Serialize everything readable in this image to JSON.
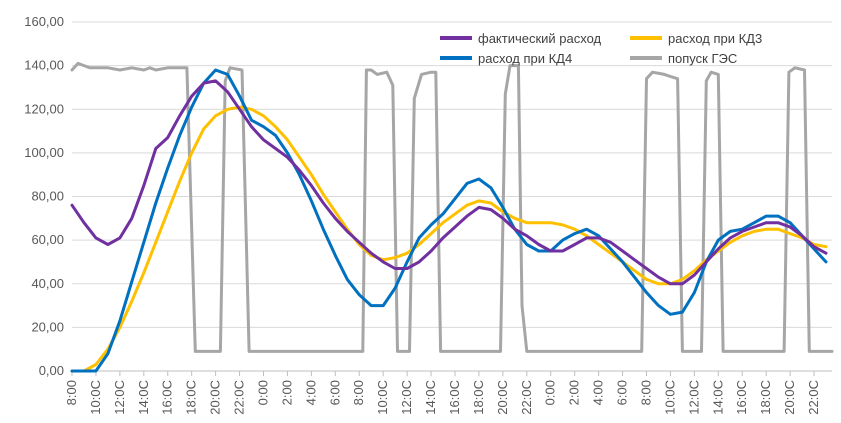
{
  "chart_data": {
    "type": "line",
    "ylim": [
      0,
      160
    ],
    "yticks": [
      "0,00",
      "20,00",
      "40,00",
      "60,00",
      "80,00",
      "100,00",
      "120,00",
      "140,00",
      "160,00"
    ],
    "ytick_values": [
      0,
      20,
      40,
      60,
      80,
      100,
      120,
      140,
      160
    ],
    "xlim": [
      8,
      71.5
    ],
    "x_unit": "hours from 0:00 of day 1",
    "xticks": [
      {
        "x": 8,
        "label": "8:00"
      },
      {
        "x": 10,
        "label": "10:0C"
      },
      {
        "x": 12,
        "label": "12:0C"
      },
      {
        "x": 14,
        "label": "14:0C"
      },
      {
        "x": 16,
        "label": "16:0C"
      },
      {
        "x": 18,
        "label": "18:0C"
      },
      {
        "x": 20,
        "label": "20:0C"
      },
      {
        "x": 22,
        "label": "22:0C"
      },
      {
        "x": 24,
        "label": "0:00"
      },
      {
        "x": 26,
        "label": "2:00"
      },
      {
        "x": 28,
        "label": "4:00"
      },
      {
        "x": 30,
        "label": "6:00"
      },
      {
        "x": 32,
        "label": "8:00"
      },
      {
        "x": 34,
        "label": "10:0C"
      },
      {
        "x": 36,
        "label": "12:0C"
      },
      {
        "x": 38,
        "label": "14:0C"
      },
      {
        "x": 40,
        "label": "16:0C"
      },
      {
        "x": 42,
        "label": "18:0C"
      },
      {
        "x": 44,
        "label": "20:0C"
      },
      {
        "x": 46,
        "label": "22:0C"
      },
      {
        "x": 48,
        "label": "0:00"
      },
      {
        "x": 50,
        "label": "2:00"
      },
      {
        "x": 52,
        "label": "4:00"
      },
      {
        "x": 54,
        "label": "6:00"
      },
      {
        "x": 56,
        "label": "8:00"
      },
      {
        "x": 58,
        "label": "10:0C"
      },
      {
        "x": 60,
        "label": "12:0C"
      },
      {
        "x": 62,
        "label": "14:0C"
      },
      {
        "x": 64,
        "label": "16:0C"
      },
      {
        "x": 66,
        "label": "18:0C"
      },
      {
        "x": 68,
        "label": "20:0C"
      },
      {
        "x": 70,
        "label": "22:0C"
      }
    ],
    "grid": "horizontal",
    "legend_position": "top-right",
    "series": [
      {
        "name": "фактический расход",
        "color": "#7030a0",
        "points": [
          [
            8,
            76
          ],
          [
            9,
            68
          ],
          [
            10,
            61
          ],
          [
            11,
            58
          ],
          [
            12,
            61
          ],
          [
            13,
            70
          ],
          [
            14,
            85
          ],
          [
            15,
            102
          ],
          [
            16,
            107
          ],
          [
            17,
            117
          ],
          [
            18,
            126
          ],
          [
            19,
            132
          ],
          [
            20,
            133
          ],
          [
            21,
            128
          ],
          [
            22,
            120
          ],
          [
            23,
            112
          ],
          [
            24,
            106
          ],
          [
            25,
            102
          ],
          [
            26,
            98
          ],
          [
            27,
            92
          ],
          [
            28,
            85
          ],
          [
            29,
            77
          ],
          [
            30,
            70
          ],
          [
            31,
            64
          ],
          [
            32,
            59
          ],
          [
            33,
            54
          ],
          [
            34,
            50
          ],
          [
            35,
            47
          ],
          [
            36,
            47
          ],
          [
            37,
            50
          ],
          [
            38,
            55
          ],
          [
            39,
            61
          ],
          [
            40,
            66
          ],
          [
            41,
            71
          ],
          [
            42,
            75
          ],
          [
            43,
            74
          ],
          [
            44,
            70
          ],
          [
            45,
            65
          ],
          [
            46,
            62
          ],
          [
            47,
            58
          ],
          [
            48,
            55
          ],
          [
            49,
            55
          ],
          [
            50,
            58
          ],
          [
            51,
            61
          ],
          [
            52,
            61
          ],
          [
            53,
            59
          ],
          [
            54,
            55
          ],
          [
            55,
            51
          ],
          [
            56,
            47
          ],
          [
            57,
            43
          ],
          [
            58,
            40
          ],
          [
            59,
            40
          ],
          [
            60,
            44
          ],
          [
            61,
            50
          ],
          [
            62,
            56
          ],
          [
            63,
            61
          ],
          [
            64,
            64
          ],
          [
            65,
            66
          ],
          [
            66,
            68
          ],
          [
            67,
            68
          ],
          [
            68,
            66
          ],
          [
            69,
            62
          ],
          [
            70,
            57
          ],
          [
            71,
            54
          ]
        ]
      },
      {
        "name": "расход при КД3",
        "color": "#ffc000",
        "points": [
          [
            8,
            0
          ],
          [
            9,
            0
          ],
          [
            10,
            3
          ],
          [
            11,
            10
          ],
          [
            12,
            20
          ],
          [
            13,
            32
          ],
          [
            14,
            45
          ],
          [
            15,
            59
          ],
          [
            16,
            73
          ],
          [
            17,
            87
          ],
          [
            18,
            100
          ],
          [
            19,
            111
          ],
          [
            20,
            117
          ],
          [
            21,
            120
          ],
          [
            22,
            121
          ],
          [
            23,
            120
          ],
          [
            24,
            117
          ],
          [
            25,
            112
          ],
          [
            26,
            106
          ],
          [
            27,
            98
          ],
          [
            28,
            90
          ],
          [
            29,
            81
          ],
          [
            30,
            73
          ],
          [
            31,
            65
          ],
          [
            32,
            58
          ],
          [
            33,
            53
          ],
          [
            34,
            51
          ],
          [
            35,
            52
          ],
          [
            36,
            54
          ],
          [
            37,
            58
          ],
          [
            38,
            63
          ],
          [
            39,
            68
          ],
          [
            40,
            72
          ],
          [
            41,
            76
          ],
          [
            42,
            78
          ],
          [
            43,
            77
          ],
          [
            44,
            73
          ],
          [
            45,
            70
          ],
          [
            46,
            68
          ],
          [
            47,
            68
          ],
          [
            48,
            68
          ],
          [
            49,
            67
          ],
          [
            50,
            65
          ],
          [
            51,
            62
          ],
          [
            52,
            58
          ],
          [
            53,
            54
          ],
          [
            54,
            50
          ],
          [
            55,
            46
          ],
          [
            56,
            42
          ],
          [
            57,
            40
          ],
          [
            58,
            40
          ],
          [
            59,
            42
          ],
          [
            60,
            46
          ],
          [
            61,
            51
          ],
          [
            62,
            55
          ],
          [
            63,
            59
          ],
          [
            64,
            62
          ],
          [
            65,
            64
          ],
          [
            66,
            65
          ],
          [
            67,
            65
          ],
          [
            68,
            63
          ],
          [
            69,
            61
          ],
          [
            70,
            58
          ],
          [
            71,
            57
          ]
        ]
      },
      {
        "name": "расход при КД4",
        "color": "#0070c0",
        "points": [
          [
            8,
            0
          ],
          [
            9,
            0
          ],
          [
            10,
            0
          ],
          [
            11,
            8
          ],
          [
            12,
            23
          ],
          [
            13,
            41
          ],
          [
            14,
            59
          ],
          [
            15,
            77
          ],
          [
            16,
            93
          ],
          [
            17,
            108
          ],
          [
            18,
            121
          ],
          [
            19,
            132
          ],
          [
            20,
            138
          ],
          [
            21,
            136
          ],
          [
            22,
            126
          ],
          [
            23,
            115
          ],
          [
            24,
            112
          ],
          [
            25,
            108
          ],
          [
            26,
            100
          ],
          [
            27,
            90
          ],
          [
            28,
            78
          ],
          [
            29,
            65
          ],
          [
            30,
            53
          ],
          [
            31,
            42
          ],
          [
            32,
            35
          ],
          [
            33,
            30
          ],
          [
            34,
            30
          ],
          [
            35,
            38
          ],
          [
            36,
            50
          ],
          [
            37,
            61
          ],
          [
            38,
            67
          ],
          [
            39,
            72
          ],
          [
            40,
            79
          ],
          [
            41,
            86
          ],
          [
            42,
            88
          ],
          [
            43,
            84
          ],
          [
            44,
            75
          ],
          [
            45,
            65
          ],
          [
            46,
            58
          ],
          [
            47,
            55
          ],
          [
            48,
            55
          ],
          [
            49,
            60
          ],
          [
            50,
            63
          ],
          [
            51,
            65
          ],
          [
            52,
            62
          ],
          [
            53,
            56
          ],
          [
            54,
            50
          ],
          [
            55,
            43
          ],
          [
            56,
            36
          ],
          [
            57,
            30
          ],
          [
            58,
            26
          ],
          [
            59,
            27
          ],
          [
            60,
            36
          ],
          [
            61,
            50
          ],
          [
            62,
            60
          ],
          [
            63,
            64
          ],
          [
            64,
            65
          ],
          [
            65,
            68
          ],
          [
            66,
            71
          ],
          [
            67,
            71
          ],
          [
            68,
            68
          ],
          [
            69,
            62
          ],
          [
            70,
            56
          ],
          [
            71,
            50
          ]
        ]
      },
      {
        "name": "попуск ГЭС",
        "color": "#a6a6a6",
        "points": [
          [
            8,
            138
          ],
          [
            8.5,
            141
          ],
          [
            9,
            140
          ],
          [
            9.5,
            139
          ],
          [
            10,
            139
          ],
          [
            11,
            139
          ],
          [
            12,
            138
          ],
          [
            13,
            139
          ],
          [
            14,
            138
          ],
          [
            14.5,
            139
          ],
          [
            15,
            138
          ],
          [
            16,
            139
          ],
          [
            17,
            139
          ],
          [
            17.6,
            139
          ],
          [
            18.3,
            9
          ],
          [
            20,
            9
          ],
          [
            20.4,
            9
          ],
          [
            20.8,
            133
          ],
          [
            21.2,
            139
          ],
          [
            22.2,
            138
          ],
          [
            22.8,
            9
          ],
          [
            24,
            9
          ],
          [
            28,
            9
          ],
          [
            32,
            9
          ],
          [
            32.3,
            9
          ],
          [
            32.6,
            138
          ],
          [
            33,
            138
          ],
          [
            33.5,
            136
          ],
          [
            34.3,
            137
          ],
          [
            34.8,
            131
          ],
          [
            35.2,
            9
          ],
          [
            36.2,
            9
          ],
          [
            36.6,
            125
          ],
          [
            37.2,
            136
          ],
          [
            38,
            137
          ],
          [
            38.4,
            137
          ],
          [
            38.8,
            9
          ],
          [
            40,
            9
          ],
          [
            42,
            9
          ],
          [
            43.8,
            9
          ],
          [
            44.2,
            127
          ],
          [
            44.6,
            140
          ],
          [
            45.3,
            140
          ],
          [
            45.6,
            30
          ],
          [
            46,
            9
          ],
          [
            48,
            9
          ],
          [
            50,
            9
          ],
          [
            52,
            9
          ],
          [
            54,
            9
          ],
          [
            55.6,
            9
          ],
          [
            56,
            134
          ],
          [
            56.5,
            137
          ],
          [
            57.5,
            136
          ],
          [
            58,
            135
          ],
          [
            58.6,
            134
          ],
          [
            59,
            9
          ],
          [
            60.6,
            9
          ],
          [
            61,
            133
          ],
          [
            61.4,
            137
          ],
          [
            62,
            136
          ],
          [
            62.4,
            9
          ],
          [
            64,
            9
          ],
          [
            66,
            9
          ],
          [
            67.5,
            9
          ],
          [
            67.9,
            137
          ],
          [
            68.4,
            139
          ],
          [
            69.2,
            138
          ],
          [
            69.6,
            9
          ],
          [
            71.5,
            9
          ]
        ]
      }
    ]
  }
}
